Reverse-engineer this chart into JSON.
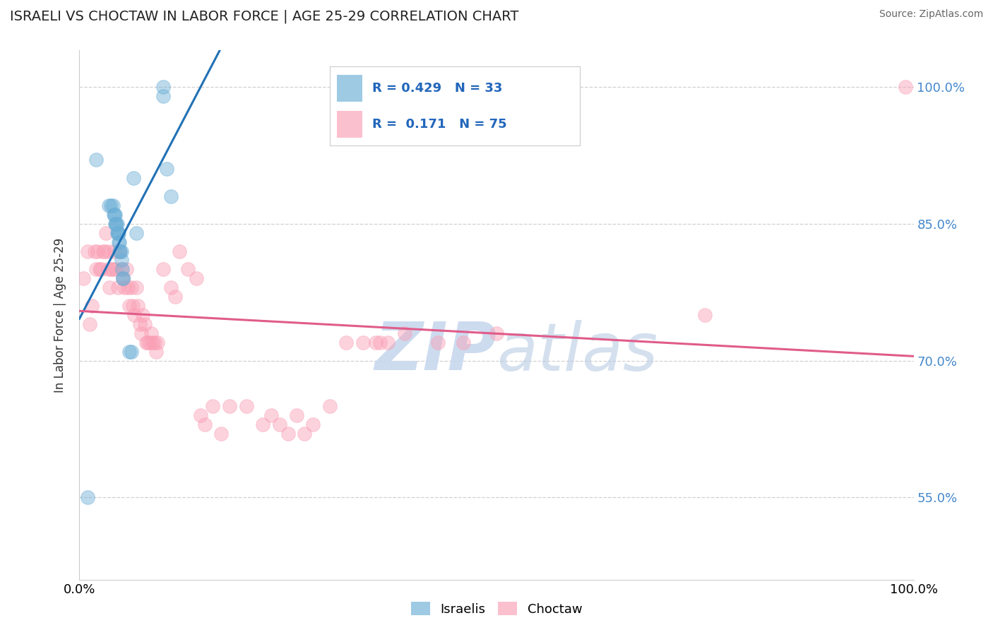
{
  "title": "ISRAELI VS CHOCTAW IN LABOR FORCE | AGE 25-29 CORRELATION CHART",
  "source_text": "Source: ZipAtlas.com",
  "ylabel": "In Labor Force | Age 25-29",
  "xlabel": "",
  "xlim": [
    0.0,
    1.0
  ],
  "ylim": [
    0.46,
    1.04
  ],
  "yticks": [
    0.55,
    0.7,
    0.85,
    1.0
  ],
  "ytick_labels": [
    "55.0%",
    "70.0%",
    "85.0%",
    "100.0%"
  ],
  "xticks": [
    0.0,
    1.0
  ],
  "xtick_labels": [
    "0.0%",
    "100.0%"
  ],
  "israeli_R": 0.429,
  "israeli_N": 33,
  "choctaw_R": 0.171,
  "choctaw_N": 75,
  "israeli_color": "#6baed6",
  "choctaw_color": "#fa9fb5",
  "trendline_israeli_color": "#2171b5",
  "trendline_choctaw_color": "#e05c8a",
  "israeli_x": [
    0.02,
    0.035,
    0.038,
    0.04,
    0.041,
    0.042,
    0.043,
    0.043,
    0.044,
    0.044,
    0.045,
    0.045,
    0.046,
    0.046,
    0.047,
    0.047,
    0.048,
    0.048,
    0.049,
    0.05,
    0.05,
    0.051,
    0.052,
    0.052,
    0.06,
    0.062,
    0.065,
    0.068,
    0.1,
    0.1,
    0.105,
    0.11,
    0.01
  ],
  "israeli_y": [
    0.92,
    0.87,
    0.87,
    0.87,
    0.86,
    0.86,
    0.86,
    0.85,
    0.85,
    0.85,
    0.85,
    0.84,
    0.84,
    0.84,
    0.84,
    0.83,
    0.83,
    0.82,
    0.82,
    0.82,
    0.81,
    0.8,
    0.79,
    0.79,
    0.71,
    0.71,
    0.9,
    0.84,
    1.0,
    0.99,
    0.91,
    0.88,
    0.55
  ],
  "choctaw_x": [
    0.005,
    0.01,
    0.012,
    0.015,
    0.018,
    0.02,
    0.022,
    0.024,
    0.026,
    0.028,
    0.03,
    0.032,
    0.034,
    0.035,
    0.036,
    0.038,
    0.04,
    0.042,
    0.044,
    0.046,
    0.048,
    0.05,
    0.052,
    0.054,
    0.056,
    0.058,
    0.06,
    0.062,
    0.064,
    0.066,
    0.068,
    0.07,
    0.072,
    0.074,
    0.076,
    0.078,
    0.08,
    0.082,
    0.084,
    0.086,
    0.088,
    0.09,
    0.092,
    0.094,
    0.1,
    0.11,
    0.115,
    0.12,
    0.13,
    0.14,
    0.145,
    0.15,
    0.16,
    0.17,
    0.18,
    0.2,
    0.22,
    0.23,
    0.24,
    0.25,
    0.26,
    0.27,
    0.28,
    0.3,
    0.32,
    0.34,
    0.355,
    0.36,
    0.37,
    0.39,
    0.43,
    0.46,
    0.5,
    0.75,
    0.99
  ],
  "choctaw_y": [
    0.79,
    0.82,
    0.74,
    0.76,
    0.82,
    0.8,
    0.82,
    0.8,
    0.8,
    0.82,
    0.82,
    0.84,
    0.8,
    0.82,
    0.78,
    0.8,
    0.8,
    0.82,
    0.8,
    0.78,
    0.82,
    0.8,
    0.79,
    0.78,
    0.8,
    0.78,
    0.76,
    0.78,
    0.76,
    0.75,
    0.78,
    0.76,
    0.74,
    0.73,
    0.75,
    0.74,
    0.72,
    0.72,
    0.72,
    0.73,
    0.72,
    0.72,
    0.71,
    0.72,
    0.8,
    0.78,
    0.77,
    0.82,
    0.8,
    0.79,
    0.64,
    0.63,
    0.65,
    0.62,
    0.65,
    0.65,
    0.63,
    0.64,
    0.63,
    0.62,
    0.64,
    0.62,
    0.63,
    0.65,
    0.72,
    0.72,
    0.72,
    0.72,
    0.72,
    0.73,
    0.72,
    0.72,
    0.73,
    0.75,
    1.0
  ],
  "watermark_zip": "ZIP",
  "watermark_atlas": "atlas",
  "background_color": "#ffffff",
  "grid_color": "#d0d0d0"
}
